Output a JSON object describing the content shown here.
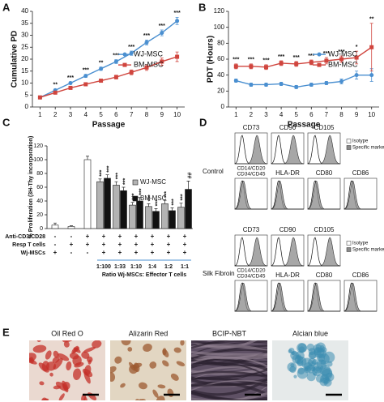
{
  "chart_data": [
    {
      "panel": "A",
      "type": "line",
      "ylabel": "Cumulative PD",
      "xlabel": "Passage",
      "x": [
        1,
        2,
        3,
        4,
        5,
        6,
        7,
        8,
        9,
        10
      ],
      "xlim": [
        0.5,
        10.5
      ],
      "xticks": [
        1,
        2,
        3,
        4,
        5,
        6,
        7,
        8,
        9,
        10
      ],
      "ylim": [
        0,
        40
      ],
      "yticks": [
        0,
        5,
        10,
        15,
        20,
        25,
        30,
        35,
        40
      ],
      "legend": "right",
      "series": [
        {
          "name": "WJ-MSC",
          "color": "#4a8fd0",
          "marker": "circle",
          "values": [
            4,
            7,
            10,
            13,
            16,
            19,
            22.5,
            27,
            31,
            36
          ],
          "errors": [
            0.4,
            0.5,
            0.5,
            0.6,
            0.7,
            0.8,
            0.9,
            1,
            1.2,
            1.5
          ],
          "annotations": [
            null,
            "**",
            "***",
            "***",
            "**",
            "***",
            "***",
            "***",
            "***",
            "***"
          ]
        },
        {
          "name": "BM-MSC",
          "color": "#d0453e",
          "marker": "square",
          "values": [
            4,
            6,
            8,
            9.5,
            11,
            12.5,
            14.5,
            16.5,
            19,
            21
          ],
          "errors": [
            0.4,
            0.5,
            0.5,
            0.6,
            0.7,
            0.8,
            1,
            1.2,
            1.5,
            2
          ]
        }
      ]
    },
    {
      "panel": "B",
      "type": "line",
      "ylabel": "PDT (Hours)",
      "xlabel": "Passage",
      "x": [
        1,
        2,
        3,
        4,
        5,
        6,
        7,
        8,
        9,
        10
      ],
      "xlim": [
        0.5,
        10.5
      ],
      "xticks": [
        1,
        2,
        3,
        4,
        5,
        6,
        7,
        8,
        9,
        10
      ],
      "ylim": [
        0,
        120
      ],
      "yticks": [
        0,
        20,
        40,
        60,
        80,
        100,
        120
      ],
      "legend": "right",
      "series": [
        {
          "name": "WJ-MSC",
          "color": "#4a8fd0",
          "marker": "circle",
          "values": [
            33,
            28,
            28,
            29,
            25,
            28,
            30,
            32,
            40,
            40
          ],
          "errors": [
            2,
            2,
            2,
            2,
            2,
            2,
            2,
            3,
            5,
            8
          ]
        },
        {
          "name": "BM-MSC",
          "color": "#d0453e",
          "marker": "square",
          "values": [
            51,
            51,
            50,
            55,
            54,
            56,
            58,
            60,
            62,
            75
          ],
          "errors": [
            3,
            3,
            3,
            3,
            3,
            3,
            4,
            4,
            8,
            30
          ],
          "annotations": [
            "***",
            "***",
            "***",
            "***",
            "***",
            "***",
            "***",
            "***",
            "*",
            "**"
          ]
        }
      ]
    },
    {
      "panel": "C",
      "type": "grouped_bar",
      "ylabel": "% Proliferation (3H-Thy incorporation)",
      "xlabel": "Ratio Wj-MSCs: Effector T cells",
      "ylim": [
        0,
        120
      ],
      "yticks": [
        0,
        20,
        40,
        60,
        80,
        100,
        120
      ],
      "control_values": [
        5,
        3,
        100
      ],
      "control_errors": [
        3,
        1,
        5
      ],
      "control_color": "#ffffff",
      "categories": [
        "1:100",
        "1:33",
        "1:10",
        "1:4",
        "1:2",
        "1:1"
      ],
      "series": [
        {
          "name": "WJ-MSC",
          "color": "#b3b3b3",
          "values": [
            68,
            63,
            34,
            32,
            36,
            31
          ],
          "errors": [
            4,
            5,
            4,
            4,
            5,
            6
          ],
          "annotations": [
            "***",
            "***",
            "***",
            "***",
            "***",
            "***"
          ]
        },
        {
          "name": "BM-MSC",
          "color": "#111111",
          "values": [
            73,
            55,
            40,
            25,
            26,
            57
          ],
          "errors": [
            5,
            5,
            5,
            4,
            4,
            12
          ],
          "annotations": [
            "***",
            "***",
            "***",
            "***",
            "***",
            "##"
          ]
        }
      ],
      "conditions": [
        {
          "label": "Anti-CD3/CD28",
          "marks": [
            "-",
            "-",
            "+",
            "+",
            "+",
            "+",
            "+",
            "+",
            "+"
          ]
        },
        {
          "label": "Resp T cells",
          "marks": [
            "-",
            "+",
            "+",
            "+",
            "+",
            "+",
            "+",
            "+",
            "+"
          ]
        },
        {
          "label": "Wj-MSCs",
          "marks": [
            "+",
            "-",
            "-",
            "+",
            "+",
            "+",
            "+",
            "+",
            "+"
          ]
        }
      ]
    }
  ],
  "flow": {
    "panel": "D",
    "groups": [
      {
        "label": "Control",
        "markers": [
          "CD73",
          "CD90",
          "CD105",
          [
            "CD14/CD20",
            "CD34/CD45"
          ],
          "HLA-DR",
          "CD80",
          "CD86"
        ]
      },
      {
        "label": "Silk Fibroin",
        "markers": [
          "CD73",
          "CD90",
          "CD105",
          [
            "CD14/CD20",
            "CD34/CD45"
          ],
          "HLA-DR",
          "CD80",
          "CD86"
        ]
      }
    ],
    "legend": [
      "Isotype",
      "Specific marke"
    ]
  },
  "stains": {
    "panel": "E",
    "labels": [
      "Oil Red O",
      "Alizarin Red",
      "BCIP-NBT",
      "Alcian blue"
    ]
  }
}
